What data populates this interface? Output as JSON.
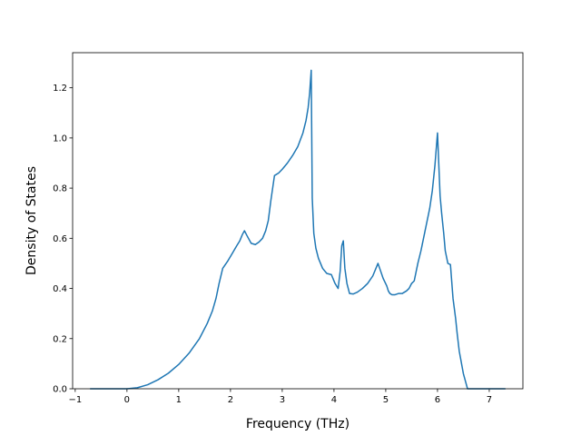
{
  "chart_data": {
    "type": "line",
    "title": "",
    "xlabel": "Frequency (THz)",
    "ylabel": "Density of States",
    "xlim": [
      -1.05,
      7.65
    ],
    "ylim": [
      0.0,
      1.34
    ],
    "xticks": [
      -1,
      0,
      1,
      2,
      3,
      4,
      5,
      6,
      7
    ],
    "xtick_labels": [
      "−1",
      "0",
      "1",
      "2",
      "3",
      "4",
      "5",
      "6",
      "7"
    ],
    "yticks": [
      0.0,
      0.2,
      0.4,
      0.6,
      0.8,
      1.0,
      1.2
    ],
    "ytick_labels": [
      "0.0",
      "0.2",
      "0.4",
      "0.6",
      "0.8",
      "1.0",
      "1.2"
    ],
    "grid": false,
    "line_color": "#1f77b4",
    "series": [
      {
        "x": [
          -0.7,
          -0.3,
          0.0,
          0.2,
          0.4,
          0.6,
          0.8,
          1.0,
          1.2,
          1.4,
          1.55,
          1.65,
          1.72,
          1.78,
          1.85,
          1.95,
          2.05,
          2.12,
          2.18,
          2.23,
          2.27,
          2.32,
          2.4,
          2.48,
          2.55,
          2.62,
          2.68,
          2.73,
          2.78,
          2.85,
          2.93,
          3.0,
          3.1,
          3.2,
          3.3,
          3.4,
          3.46,
          3.5,
          3.53,
          3.56,
          3.58,
          3.61,
          3.65,
          3.7,
          3.78,
          3.86,
          3.95,
          4.02,
          4.08,
          4.12,
          4.15,
          4.18,
          4.21,
          4.25,
          4.3,
          4.37,
          4.45,
          4.55,
          4.65,
          4.75,
          4.85,
          4.95,
          5.02,
          5.05,
          5.08,
          5.12,
          5.18,
          5.25,
          5.32,
          5.4,
          5.45,
          5.5,
          5.55,
          5.62,
          5.68,
          5.73,
          5.78,
          5.85,
          5.9,
          5.95,
          6.0,
          6.05,
          6.08,
          6.12,
          6.15,
          6.2,
          6.25,
          6.3,
          6.35,
          6.38,
          6.42,
          6.5,
          6.58,
          6.63,
          6.67,
          6.8,
          7.0,
          7.3
        ],
        "y": [
          0.0,
          0.0,
          0.0,
          0.004,
          0.016,
          0.036,
          0.062,
          0.097,
          0.142,
          0.2,
          0.26,
          0.31,
          0.36,
          0.42,
          0.48,
          0.51,
          0.545,
          0.57,
          0.59,
          0.615,
          0.63,
          0.61,
          0.58,
          0.575,
          0.585,
          0.6,
          0.63,
          0.67,
          0.75,
          0.85,
          0.86,
          0.875,
          0.9,
          0.93,
          0.965,
          1.02,
          1.07,
          1.12,
          1.18,
          1.27,
          0.76,
          0.62,
          0.56,
          0.52,
          0.48,
          0.46,
          0.455,
          0.42,
          0.4,
          0.47,
          0.57,
          0.59,
          0.48,
          0.42,
          0.38,
          0.378,
          0.385,
          0.4,
          0.42,
          0.45,
          0.5,
          0.44,
          0.41,
          0.39,
          0.38,
          0.375,
          0.375,
          0.38,
          0.38,
          0.39,
          0.4,
          0.42,
          0.43,
          0.5,
          0.55,
          0.6,
          0.65,
          0.72,
          0.79,
          0.89,
          1.02,
          0.77,
          0.7,
          0.62,
          0.55,
          0.5,
          0.495,
          0.36,
          0.28,
          0.22,
          0.15,
          0.06,
          0.0,
          0.0,
          0.0,
          0.0,
          0.0,
          0.0
        ]
      }
    ]
  }
}
